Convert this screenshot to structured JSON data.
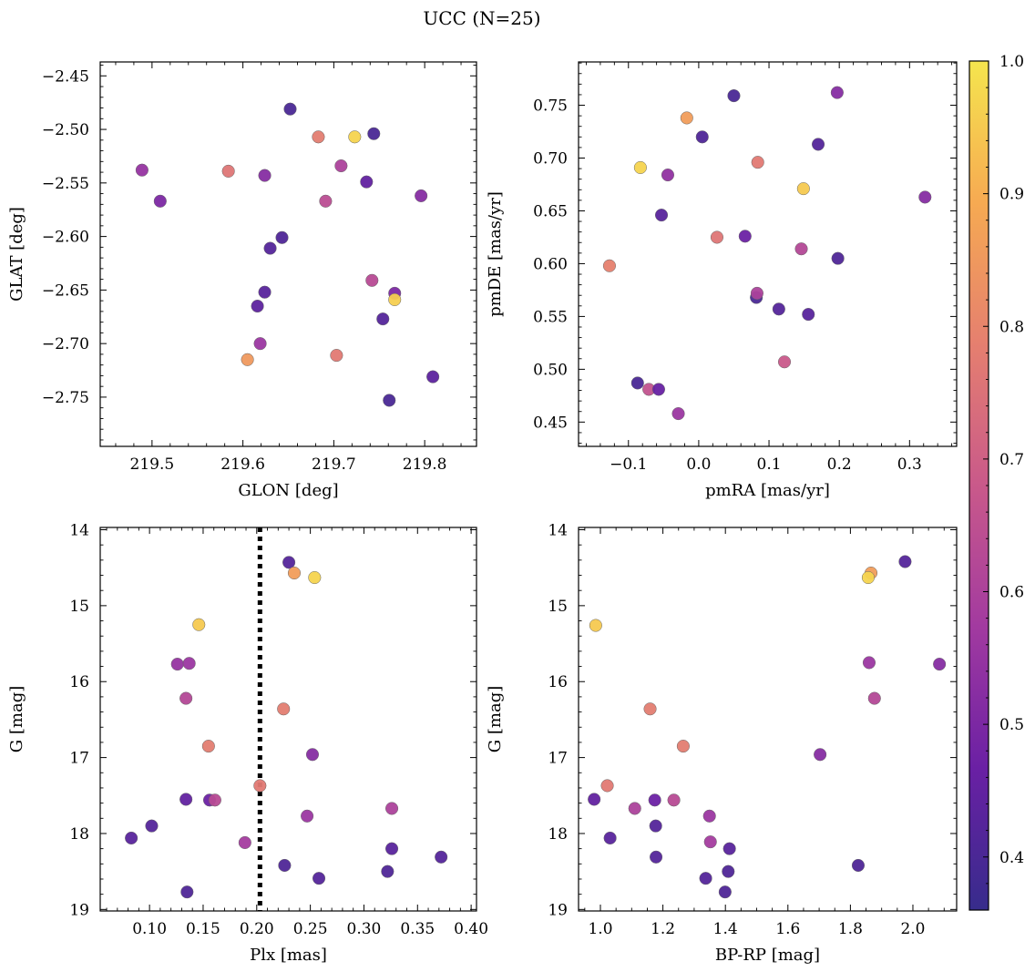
{
  "figure": {
    "title": "UCC (N=25)"
  },
  "colorbar": {
    "min": 0.36,
    "max": 1.0,
    "ticks": [
      0.4,
      0.5,
      0.6,
      0.7,
      0.8,
      0.9,
      1.0
    ],
    "tick_labels": [
      "0.4",
      "0.5",
      "0.6",
      "0.7",
      "0.8",
      "0.9",
      "1.0"
    ],
    "colormap": "plasma",
    "colormap_stops": [
      "#372c8c",
      "#6a20a4",
      "#a23aa0",
      "#c9598a",
      "#e57f6f",
      "#f6aa52",
      "#f5e54e"
    ]
  },
  "chart_data": [
    {
      "type": "scatter",
      "id": "glon-glat",
      "xlabel": "GLON [deg]",
      "ylabel": "GLAT [deg]",
      "xlim": [
        219.443,
        219.857
      ],
      "ylim": [
        -2.796,
        -2.437
      ],
      "y_inverted": false,
      "xticks": [
        219.5,
        219.6,
        219.7,
        219.8
      ],
      "xtick_labels": [
        "219.5",
        "219.6",
        "219.7",
        "219.8"
      ],
      "yticks": [
        -2.75,
        -2.7,
        -2.65,
        -2.6,
        -2.55,
        -2.5,
        -2.45
      ],
      "ytick_labels": [
        "−2.75",
        "−2.70",
        "−2.65",
        "−2.60",
        "−2.55",
        "−2.50",
        "−2.45"
      ],
      "points": [
        {
          "x": 219.489,
          "y": -2.538,
          "c": 0.55
        },
        {
          "x": 219.509,
          "y": -2.567,
          "c": 0.5
        },
        {
          "x": 219.584,
          "y": -2.539,
          "c": 0.76
        },
        {
          "x": 219.624,
          "y": -2.543,
          "c": 0.52
        },
        {
          "x": 219.652,
          "y": -2.481,
          "c": 0.4
        },
        {
          "x": 219.683,
          "y": -2.507,
          "c": 0.78
        },
        {
          "x": 219.723,
          "y": -2.507,
          "c": 0.97
        },
        {
          "x": 219.744,
          "y": -2.504,
          "c": 0.4
        },
        {
          "x": 219.708,
          "y": -2.534,
          "c": 0.6
        },
        {
          "x": 219.691,
          "y": -2.567,
          "c": 0.64
        },
        {
          "x": 219.736,
          "y": -2.549,
          "c": 0.45
        },
        {
          "x": 219.796,
          "y": -2.562,
          "c": 0.52
        },
        {
          "x": 219.643,
          "y": -2.601,
          "c": 0.41
        },
        {
          "x": 219.63,
          "y": -2.611,
          "c": 0.42
        },
        {
          "x": 219.624,
          "y": -2.652,
          "c": 0.43
        },
        {
          "x": 219.616,
          "y": -2.665,
          "c": 0.44
        },
        {
          "x": 219.742,
          "y": -2.641,
          "c": 0.63
        },
        {
          "x": 219.767,
          "y": -2.653,
          "c": 0.5
        },
        {
          "x": 219.767,
          "y": -2.659,
          "c": 0.96
        },
        {
          "x": 219.754,
          "y": -2.677,
          "c": 0.42
        },
        {
          "x": 219.619,
          "y": -2.7,
          "c": 0.56
        },
        {
          "x": 219.605,
          "y": -2.715,
          "c": 0.85
        },
        {
          "x": 219.703,
          "y": -2.711,
          "c": 0.77
        },
        {
          "x": 219.809,
          "y": -2.731,
          "c": 0.44
        },
        {
          "x": 219.761,
          "y": -2.753,
          "c": 0.4
        }
      ]
    },
    {
      "type": "scatter",
      "id": "pmra-pmde",
      "xlabel": "pmRA [mas/yr]",
      "ylabel": "pmDE [mas/yr]",
      "xlim": [
        -0.171,
        0.367
      ],
      "ylim": [
        0.427,
        0.791
      ],
      "y_inverted": false,
      "xticks": [
        -0.1,
        0.0,
        0.1,
        0.2,
        0.3
      ],
      "xtick_labels": [
        "−0.1",
        "0.0",
        "0.1",
        "0.2",
        "0.3"
      ],
      "yticks": [
        0.45,
        0.5,
        0.55,
        0.6,
        0.65,
        0.7,
        0.75
      ],
      "ytick_labels": [
        "0.45",
        "0.50",
        "0.55",
        "0.60",
        "0.65",
        "0.70",
        "0.75"
      ],
      "points": [
        {
          "x": 0.05,
          "y": 0.759,
          "c": 0.4
        },
        {
          "x": 0.197,
          "y": 0.762,
          "c": 0.52
        },
        {
          "x": -0.017,
          "y": 0.738,
          "c": 0.86
        },
        {
          "x": 0.005,
          "y": 0.72,
          "c": 0.41
        },
        {
          "x": 0.17,
          "y": 0.713,
          "c": 0.42
        },
        {
          "x": -0.083,
          "y": 0.691,
          "c": 0.97
        },
        {
          "x": -0.044,
          "y": 0.684,
          "c": 0.54
        },
        {
          "x": 0.084,
          "y": 0.696,
          "c": 0.77
        },
        {
          "x": 0.149,
          "y": 0.671,
          "c": 0.95
        },
        {
          "x": 0.322,
          "y": 0.663,
          "c": 0.52
        },
        {
          "x": -0.053,
          "y": 0.646,
          "c": 0.43
        },
        {
          "x": 0.026,
          "y": 0.625,
          "c": 0.76
        },
        {
          "x": 0.066,
          "y": 0.626,
          "c": 0.47
        },
        {
          "x": 0.146,
          "y": 0.614,
          "c": 0.62
        },
        {
          "x": 0.198,
          "y": 0.605,
          "c": 0.41
        },
        {
          "x": -0.127,
          "y": 0.598,
          "c": 0.79
        },
        {
          "x": 0.082,
          "y": 0.568,
          "c": 0.4
        },
        {
          "x": 0.083,
          "y": 0.572,
          "c": 0.6
        },
        {
          "x": 0.114,
          "y": 0.557,
          "c": 0.42
        },
        {
          "x": 0.156,
          "y": 0.552,
          "c": 0.43
        },
        {
          "x": 0.122,
          "y": 0.507,
          "c": 0.68
        },
        {
          "x": -0.087,
          "y": 0.487,
          "c": 0.4
        },
        {
          "x": -0.071,
          "y": 0.481,
          "c": 0.66
        },
        {
          "x": -0.057,
          "y": 0.481,
          "c": 0.46
        },
        {
          "x": -0.029,
          "y": 0.458,
          "c": 0.56
        }
      ]
    },
    {
      "type": "scatter",
      "id": "plx-g",
      "xlabel": "Plx [mas]",
      "ylabel": "G [mag]",
      "xlim": [
        0.054,
        0.405
      ],
      "ylim": [
        19.02,
        13.97
      ],
      "y_inverted": true,
      "xticks": [
        0.1,
        0.15,
        0.2,
        0.25,
        0.3,
        0.35,
        0.4
      ],
      "xtick_labels": [
        "0.10",
        "0.15",
        "0.20",
        "0.25",
        "0.30",
        "0.35",
        "0.40"
      ],
      "yticks": [
        14,
        15,
        16,
        17,
        18,
        19
      ],
      "ytick_labels": [
        "14",
        "15",
        "16",
        "17",
        "18",
        "19"
      ],
      "vline": {
        "x": 0.203,
        "style": "dotted"
      },
      "points": [
        {
          "x": 0.23,
          "y": 14.43,
          "c": 0.42
        },
        {
          "x": 0.235,
          "y": 14.57,
          "c": 0.86
        },
        {
          "x": 0.254,
          "y": 14.63,
          "c": 0.97
        },
        {
          "x": 0.146,
          "y": 15.25,
          "c": 0.95
        },
        {
          "x": 0.126,
          "y": 15.77,
          "c": 0.55
        },
        {
          "x": 0.137,
          "y": 15.76,
          "c": 0.56
        },
        {
          "x": 0.134,
          "y": 16.22,
          "c": 0.62
        },
        {
          "x": 0.225,
          "y": 16.36,
          "c": 0.78
        },
        {
          "x": 0.155,
          "y": 16.85,
          "c": 0.78
        },
        {
          "x": 0.252,
          "y": 16.96,
          "c": 0.52
        },
        {
          "x": 0.203,
          "y": 17.37,
          "c": 0.77
        },
        {
          "x": 0.134,
          "y": 17.55,
          "c": 0.45
        },
        {
          "x": 0.156,
          "y": 17.56,
          "c": 0.47
        },
        {
          "x": 0.161,
          "y": 17.56,
          "c": 0.63
        },
        {
          "x": 0.326,
          "y": 17.67,
          "c": 0.6
        },
        {
          "x": 0.247,
          "y": 17.77,
          "c": 0.56
        },
        {
          "x": 0.102,
          "y": 17.9,
          "c": 0.42
        },
        {
          "x": 0.083,
          "y": 18.06,
          "c": 0.43
        },
        {
          "x": 0.189,
          "y": 18.12,
          "c": 0.58
        },
        {
          "x": 0.326,
          "y": 18.2,
          "c": 0.43
        },
        {
          "x": 0.372,
          "y": 18.31,
          "c": 0.42
        },
        {
          "x": 0.226,
          "y": 18.42,
          "c": 0.41
        },
        {
          "x": 0.322,
          "y": 18.5,
          "c": 0.41
        },
        {
          "x": 0.258,
          "y": 18.59,
          "c": 0.42
        },
        {
          "x": 0.135,
          "y": 18.77,
          "c": 0.41
        }
      ]
    },
    {
      "type": "scatter",
      "id": "bprp-g",
      "xlabel": "BP-RP [mag]",
      "ylabel": "G [mag]",
      "xlim": [
        0.93,
        2.14
      ],
      "ylim": [
        19.02,
        13.97
      ],
      "y_inverted": true,
      "xticks": [
        1.0,
        1.2,
        1.4,
        1.6,
        1.8,
        2.0
      ],
      "xtick_labels": [
        "1.0",
        "1.2",
        "1.4",
        "1.6",
        "1.8",
        "2.0"
      ],
      "yticks": [
        14,
        15,
        16,
        17,
        18,
        19
      ],
      "ytick_labels": [
        "14",
        "15",
        "16",
        "17",
        "18",
        "19"
      ],
      "points": [
        {
          "x": 1.975,
          "y": 14.42,
          "c": 0.42
        },
        {
          "x": 1.866,
          "y": 14.57,
          "c": 0.86
        },
        {
          "x": 1.857,
          "y": 14.63,
          "c": 0.97
        },
        {
          "x": 0.985,
          "y": 15.26,
          "c": 0.95
        },
        {
          "x": 1.86,
          "y": 15.75,
          "c": 0.56
        },
        {
          "x": 2.085,
          "y": 15.77,
          "c": 0.52
        },
        {
          "x": 1.877,
          "y": 16.22,
          "c": 0.62
        },
        {
          "x": 1.159,
          "y": 16.36,
          "c": 0.78
        },
        {
          "x": 1.265,
          "y": 16.85,
          "c": 0.78
        },
        {
          "x": 1.703,
          "y": 16.96,
          "c": 0.52
        },
        {
          "x": 1.022,
          "y": 17.37,
          "c": 0.77
        },
        {
          "x": 0.98,
          "y": 17.55,
          "c": 0.45
        },
        {
          "x": 1.174,
          "y": 17.56,
          "c": 0.47
        },
        {
          "x": 1.235,
          "y": 17.56,
          "c": 0.63
        },
        {
          "x": 1.11,
          "y": 17.67,
          "c": 0.6
        },
        {
          "x": 1.349,
          "y": 17.77,
          "c": 0.56
        },
        {
          "x": 1.177,
          "y": 17.9,
          "c": 0.42
        },
        {
          "x": 1.031,
          "y": 18.06,
          "c": 0.43
        },
        {
          "x": 1.352,
          "y": 18.11,
          "c": 0.58
        },
        {
          "x": 1.413,
          "y": 18.2,
          "c": 0.43
        },
        {
          "x": 1.178,
          "y": 18.31,
          "c": 0.42
        },
        {
          "x": 1.825,
          "y": 18.42,
          "c": 0.41
        },
        {
          "x": 1.409,
          "y": 18.5,
          "c": 0.41
        },
        {
          "x": 1.337,
          "y": 18.59,
          "c": 0.42
        },
        {
          "x": 1.399,
          "y": 18.77,
          "c": 0.41
        }
      ]
    }
  ]
}
